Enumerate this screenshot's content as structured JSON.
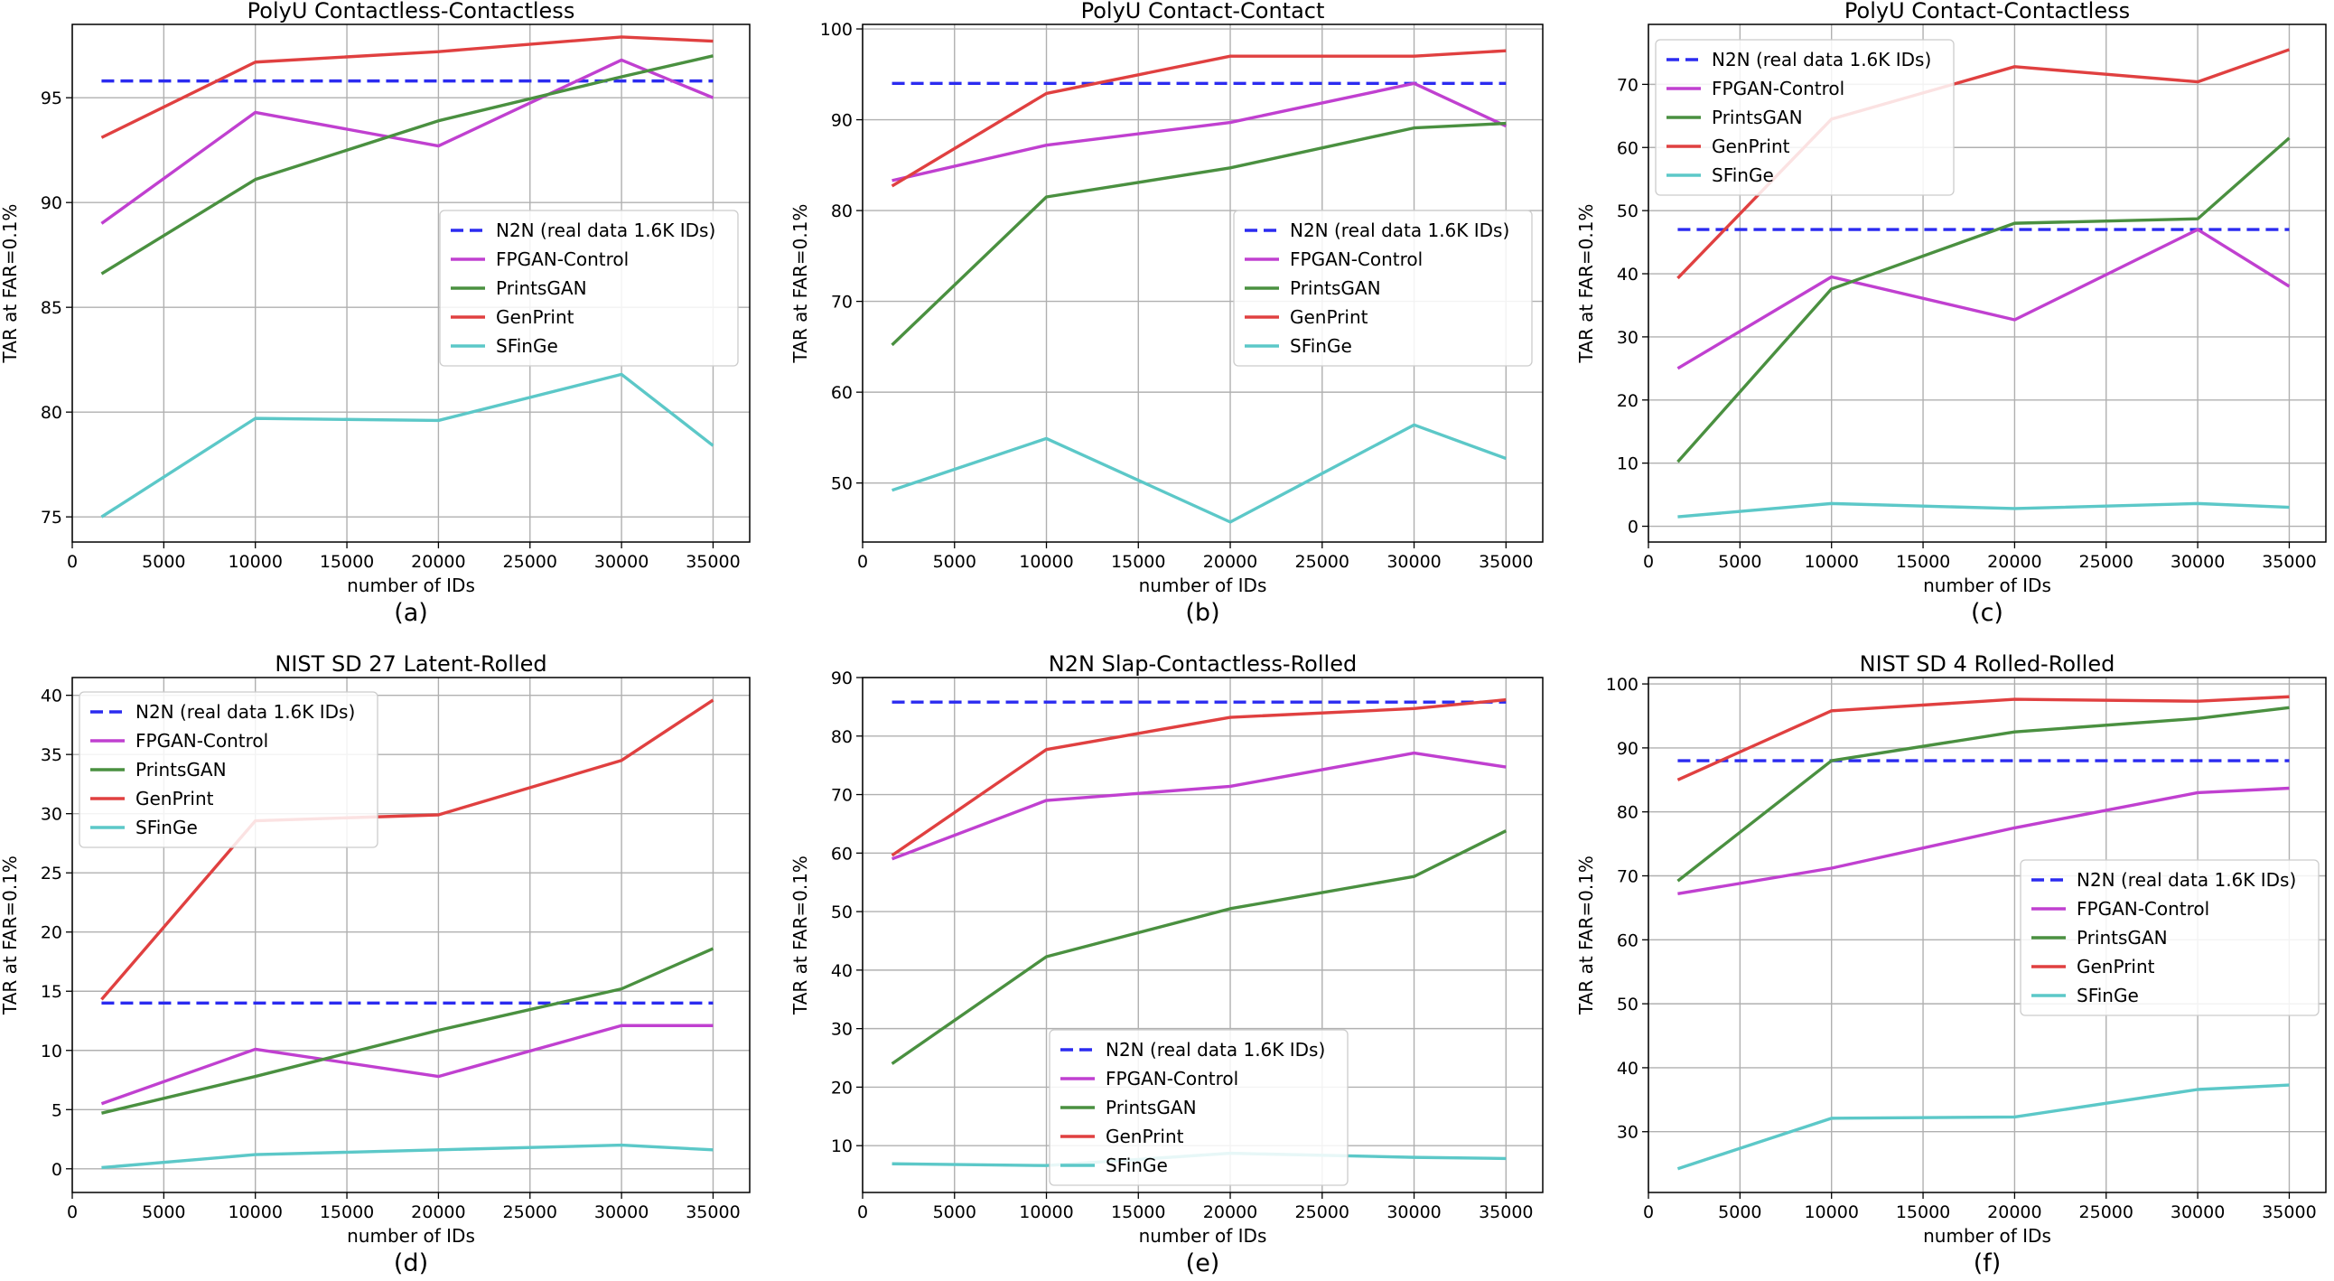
{
  "chart_data": [
    {
      "type": "line",
      "panel_label": "(a)",
      "title": "PolyU Contactless-Contactless",
      "xlabel": "number of IDs",
      "ylabel": "TAR at FAR=0.1%",
      "xlim": [
        0,
        37000
      ],
      "ylim": [
        73.8,
        98.5
      ],
      "xticks": [
        0,
        5000,
        10000,
        15000,
        20000,
        25000,
        30000,
        35000
      ],
      "yticks": [
        75,
        80,
        85,
        90,
        95
      ],
      "grid": true,
      "legend_position": "center-right",
      "x": [
        1600,
        10000,
        20000,
        30000,
        35000
      ],
      "series": [
        {
          "name": "N2N (real data 1.6K IDs)",
          "color": "#2b2bf0",
          "dashed": true,
          "values": [
            95.8,
            95.8,
            95.8,
            95.8,
            95.8
          ]
        },
        {
          "name": "FPGAN-Control",
          "color": "#c040d0",
          "dashed": false,
          "values": [
            89.0,
            94.3,
            92.7,
            96.8,
            95.0
          ]
        },
        {
          "name": "PrintsGAN",
          "color": "#4a9040",
          "dashed": false,
          "values": [
            86.6,
            91.1,
            93.9,
            96.0,
            97.0
          ]
        },
        {
          "name": "GenPrint",
          "color": "#e04040",
          "dashed": false,
          "values": [
            93.1,
            96.7,
            97.2,
            97.9,
            97.7
          ]
        },
        {
          "name": "SFinGe",
          "color": "#5cc8c8",
          "dashed": false,
          "values": [
            75.0,
            79.7,
            79.6,
            81.8,
            78.4
          ]
        }
      ]
    },
    {
      "type": "line",
      "panel_label": "(b)",
      "title": "PolyU Contact-Contact",
      "xlabel": "number of IDs",
      "ylabel": "TAR at FAR=0.1%",
      "xlim": [
        0,
        37000
      ],
      "ylim": [
        43.5,
        100.5
      ],
      "xticks": [
        0,
        5000,
        10000,
        15000,
        20000,
        25000,
        30000,
        35000
      ],
      "yticks": [
        50,
        60,
        70,
        80,
        90,
        100
      ],
      "grid": true,
      "legend_position": "center-right",
      "x": [
        1600,
        10000,
        20000,
        30000,
        35000
      ],
      "series": [
        {
          "name": "N2N (real data 1.6K IDs)",
          "color": "#2b2bf0",
          "dashed": true,
          "values": [
            94.0,
            94.0,
            94.0,
            94.0,
            94.0
          ]
        },
        {
          "name": "FPGAN-Control",
          "color": "#c040d0",
          "dashed": false,
          "values": [
            83.3,
            87.2,
            89.7,
            94.0,
            89.3
          ]
        },
        {
          "name": "PrintsGAN",
          "color": "#4a9040",
          "dashed": false,
          "values": [
            65.2,
            81.5,
            84.7,
            89.1,
            89.6
          ]
        },
        {
          "name": "GenPrint",
          "color": "#e04040",
          "dashed": false,
          "values": [
            82.7,
            92.9,
            97.0,
            97.0,
            97.6
          ]
        },
        {
          "name": "SFinGe",
          "color": "#5cc8c8",
          "dashed": false,
          "values": [
            49.2,
            54.9,
            45.7,
            56.4,
            52.7
          ]
        }
      ]
    },
    {
      "type": "line",
      "panel_label": "(c)",
      "title": "PolyU Contact-Contactless",
      "xlabel": "number of IDs",
      "ylabel": "TAR at FAR=0.1%",
      "xlim": [
        0,
        37000
      ],
      "ylim": [
        -2.5,
        79.5
      ],
      "xticks": [
        0,
        5000,
        10000,
        15000,
        20000,
        25000,
        30000,
        35000
      ],
      "yticks": [
        0,
        10,
        20,
        30,
        40,
        50,
        60,
        70
      ],
      "grid": true,
      "legend_position": "top-left",
      "x": [
        1600,
        10000,
        20000,
        30000,
        35000
      ],
      "series": [
        {
          "name": "N2N (real data 1.6K IDs)",
          "color": "#2b2bf0",
          "dashed": true,
          "values": [
            47.0,
            47.0,
            47.0,
            47.0,
            47.0
          ]
        },
        {
          "name": "FPGAN-Control",
          "color": "#c040d0",
          "dashed": false,
          "values": [
            25.0,
            39.5,
            32.7,
            47.0,
            38.0
          ]
        },
        {
          "name": "PrintsGAN",
          "color": "#4a9040",
          "dashed": false,
          "values": [
            10.2,
            37.6,
            48.0,
            48.7,
            61.5
          ]
        },
        {
          "name": "GenPrint",
          "color": "#e04040",
          "dashed": false,
          "values": [
            39.3,
            64.5,
            72.8,
            70.4,
            75.5
          ]
        },
        {
          "name": "SFinGe",
          "color": "#5cc8c8",
          "dashed": false,
          "values": [
            1.5,
            3.6,
            2.8,
            3.6,
            3.0
          ]
        }
      ]
    },
    {
      "type": "line",
      "panel_label": "(d)",
      "title": "NIST SD 27 Latent-Rolled",
      "xlabel": "number of IDs",
      "ylabel": "TAR at FAR=0.1%",
      "xlim": [
        0,
        37000
      ],
      "ylim": [
        -2.0,
        41.5
      ],
      "xticks": [
        0,
        5000,
        10000,
        15000,
        20000,
        25000,
        30000,
        35000
      ],
      "yticks": [
        0,
        5,
        10,
        15,
        20,
        25,
        30,
        35,
        40
      ],
      "grid": true,
      "legend_position": "top-left",
      "x": [
        1600,
        10000,
        20000,
        30000,
        35000
      ],
      "series": [
        {
          "name": "N2N (real data 1.6K IDs)",
          "color": "#2b2bf0",
          "dashed": true,
          "values": [
            14.0,
            14.0,
            14.0,
            14.0,
            14.0
          ]
        },
        {
          "name": "FPGAN-Control",
          "color": "#c040d0",
          "dashed": false,
          "values": [
            5.5,
            10.1,
            7.8,
            12.1,
            12.1
          ]
        },
        {
          "name": "PrintsGAN",
          "color": "#4a9040",
          "dashed": false,
          "values": [
            4.7,
            7.8,
            11.7,
            15.2,
            18.6
          ]
        },
        {
          "name": "GenPrint",
          "color": "#e04040",
          "dashed": false,
          "values": [
            14.3,
            29.4,
            29.9,
            34.5,
            39.6
          ]
        },
        {
          "name": "SFinGe",
          "color": "#5cc8c8",
          "dashed": false,
          "values": [
            0.1,
            1.2,
            1.6,
            2.0,
            1.6
          ]
        }
      ]
    },
    {
      "type": "line",
      "panel_label": "(e)",
      "title": "N2N Slap-Contactless-Rolled",
      "xlabel": "number of IDs",
      "ylabel": "TAR at FAR=0.1%",
      "xlim": [
        0,
        37000
      ],
      "ylim": [
        2.0,
        90.0
      ],
      "xticks": [
        0,
        5000,
        10000,
        15000,
        20000,
        25000,
        30000,
        35000
      ],
      "yticks": [
        10,
        20,
        30,
        40,
        50,
        60,
        70,
        80,
        90
      ],
      "grid": true,
      "legend_position": "bottom-center",
      "x": [
        1600,
        10000,
        20000,
        30000,
        35000
      ],
      "series": [
        {
          "name": "N2N (real data 1.6K IDs)",
          "color": "#2b2bf0",
          "dashed": true,
          "values": [
            85.8,
            85.8,
            85.8,
            85.8,
            85.8
          ]
        },
        {
          "name": "FPGAN-Control",
          "color": "#c040d0",
          "dashed": false,
          "values": [
            59.0,
            69.0,
            71.4,
            77.1,
            74.7
          ]
        },
        {
          "name": "PrintsGAN",
          "color": "#4a9040",
          "dashed": false,
          "values": [
            24.0,
            42.3,
            50.5,
            56.0,
            63.8
          ]
        },
        {
          "name": "GenPrint",
          "color": "#e04040",
          "dashed": false,
          "values": [
            59.6,
            77.7,
            83.2,
            84.7,
            86.2
          ]
        },
        {
          "name": "SFinGe",
          "color": "#5cc8c8",
          "dashed": false,
          "values": [
            6.9,
            6.6,
            8.7,
            8.0,
            7.8
          ]
        }
      ]
    },
    {
      "type": "line",
      "panel_label": "(f)",
      "title": "NIST SD 4 Rolled-Rolled",
      "xlabel": "number of IDs",
      "ylabel": "TAR at FAR=0.1%",
      "xlim": [
        0,
        37000
      ],
      "ylim": [
        20.5,
        101.0
      ],
      "xticks": [
        0,
        5000,
        10000,
        15000,
        20000,
        25000,
        30000,
        35000
      ],
      "yticks": [
        30,
        40,
        50,
        60,
        70,
        80,
        90,
        100
      ],
      "grid": true,
      "legend_position": "center-right",
      "x": [
        1600,
        10000,
        20000,
        30000,
        35000
      ],
      "series": [
        {
          "name": "N2N (real data 1.6K IDs)",
          "color": "#2b2bf0",
          "dashed": true,
          "values": [
            88.0,
            88.0,
            88.0,
            88.0,
            88.0
          ]
        },
        {
          "name": "FPGAN-Control",
          "color": "#c040d0",
          "dashed": false,
          "values": [
            67.2,
            71.2,
            77.5,
            83.0,
            83.7
          ]
        },
        {
          "name": "PrintsGAN",
          "color": "#4a9040",
          "dashed": false,
          "values": [
            69.2,
            88.0,
            92.5,
            94.6,
            96.3
          ]
        },
        {
          "name": "GenPrint",
          "color": "#e04040",
          "dashed": false,
          "values": [
            85.0,
            95.8,
            97.6,
            97.3,
            98.0
          ]
        },
        {
          "name": "SFinGe",
          "color": "#5cc8c8",
          "dashed": false,
          "values": [
            24.2,
            32.1,
            32.3,
            36.6,
            37.3
          ]
        }
      ]
    }
  ]
}
